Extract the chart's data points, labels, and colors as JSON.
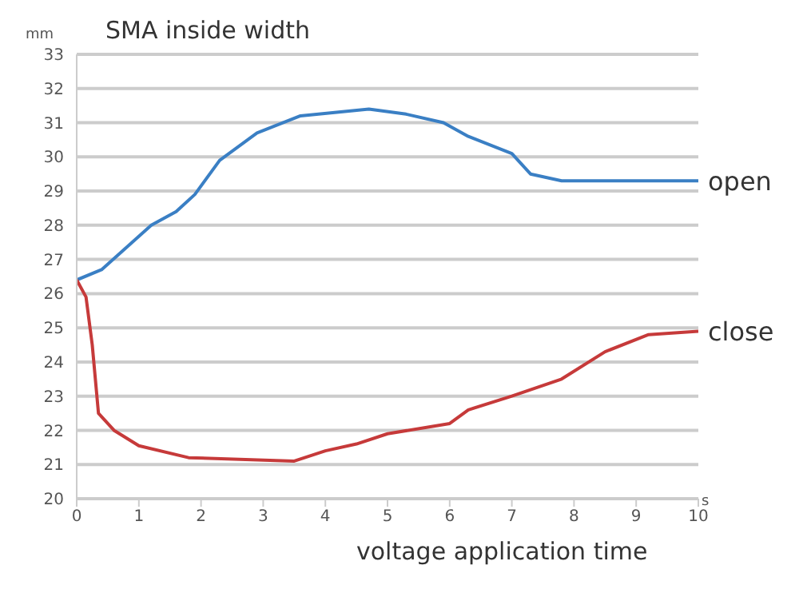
{
  "chart_data": {
    "type": "line",
    "title": "SMA inside width",
    "ylabel": "mm",
    "xlabel": "voltage application time",
    "annotations": [
      "s"
    ],
    "xlim": [
      0,
      10
    ],
    "xticks": [
      0,
      1,
      2,
      3,
      4,
      5,
      6,
      7,
      8,
      9,
      10
    ],
    "ylim": [
      20,
      33
    ],
    "yticks": [
      20,
      21,
      22,
      23,
      24,
      25,
      26,
      27,
      28,
      29,
      30,
      31,
      32,
      33
    ],
    "grid": "y",
    "marker": "none",
    "line_style": "solid",
    "series": [
      {
        "name": "open",
        "color": "#3a7fc4",
        "x": [
          0,
          0.4,
          1.2,
          1.6,
          1.9,
          2.3,
          2.9,
          3.6,
          4.7,
          5.3,
          5.9,
          6.3,
          7.0,
          7.3,
          7.8,
          10
        ],
        "values": [
          26.4,
          26.7,
          28.0,
          28.4,
          28.9,
          29.9,
          30.7,
          31.2,
          31.4,
          31.25,
          31.0,
          30.6,
          30.1,
          29.5,
          29.3,
          29.3
        ]
      },
      {
        "name": "close",
        "color": "#c63a3a",
        "x": [
          0,
          0.15,
          0.25,
          0.35,
          0.6,
          1.0,
          1.8,
          3.5,
          4.0,
          4.5,
          5.0,
          6.0,
          6.3,
          7.0,
          7.8,
          8.5,
          9.2,
          10
        ],
        "values": [
          26.4,
          25.9,
          24.5,
          22.5,
          22.0,
          21.55,
          21.2,
          21.1,
          21.4,
          21.6,
          21.9,
          22.2,
          22.6,
          23.0,
          23.5,
          24.3,
          24.8,
          24.9
        ]
      }
    ]
  }
}
